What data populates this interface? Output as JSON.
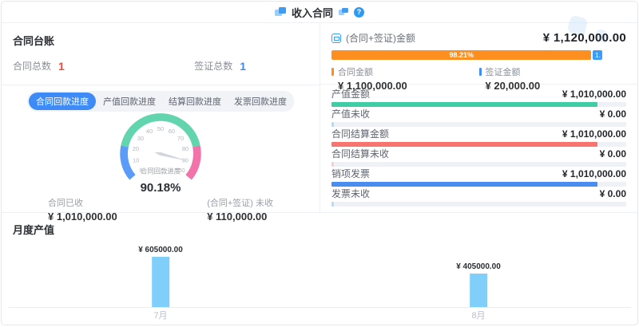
{
  "header": {
    "title": "收入合同",
    "help_glyph": "?",
    "icons": {
      "left": "documents-icon",
      "right": "copy-icon",
      "help": "help-icon"
    }
  },
  "ledger": {
    "title": "合同台账",
    "stats": [
      {
        "label": "合同总数",
        "value": "1",
        "color": "#f5483b"
      },
      {
        "label": "签证总数",
        "value": "1",
        "color": "#3d8af5"
      }
    ]
  },
  "amount_panel": {
    "label": "(合同+签证)金额",
    "total": "¥ 1,120,000.00",
    "stacked_bar": {
      "main_pct": 98.21,
      "main_label": "98.21%",
      "main_color": "#fd8f20",
      "rest_label": "1.",
      "rest_color": "#3d9df5"
    },
    "legend": [
      {
        "label": "合同金额",
        "value": "¥ 1,100,000.00",
        "color": "#fd8f20"
      },
      {
        "label": "签证金额",
        "value": "¥ 20,000.00",
        "color": "#3d8ff7"
      }
    ]
  },
  "progress_panel": {
    "tabs": [
      {
        "label": "合同回款进度",
        "active": true
      },
      {
        "label": "产值回款进度",
        "active": false
      },
      {
        "label": "结算回款进度",
        "active": false
      },
      {
        "label": "发票回款进度",
        "active": false
      }
    ],
    "percent": "90.18%",
    "stats": [
      {
        "label": "合同已收",
        "value": "¥ 1,010,000.00"
      },
      {
        "label": "(合同+签证) 未收",
        "value": "¥ 110,000.00"
      }
    ]
  },
  "metric_rows": [
    {
      "label": "产值金额",
      "value": "¥ 1,010,000.00",
      "pct": 90.18,
      "color": "#3fcda6"
    },
    {
      "label": "产值未收",
      "value": "¥ 0.00",
      "pct": 0.9,
      "color": "#aee0ea"
    },
    {
      "label": "合同结算金额",
      "value": "¥ 1,010,000.00",
      "pct": 90.18,
      "color": "#f8756f"
    },
    {
      "label": "合同结算未收",
      "value": "¥ 0.00",
      "pct": 0.9,
      "color": "#f8cdd3"
    },
    {
      "label": "销项发票",
      "value": "¥ 1,010,000.00",
      "pct": 90.18,
      "color": "#4a8df0"
    },
    {
      "label": "发票未收",
      "value": "¥ 0.00",
      "pct": 0.9,
      "color": "#bcd8f8"
    }
  ],
  "chart_data": [
    {
      "type": "gauge",
      "title": "合同回款进度",
      "value": 90.18,
      "value_label": "90.18%",
      "min": 0,
      "max": 100,
      "ticks": [
        0,
        10,
        20,
        30,
        40,
        50,
        60,
        70,
        80,
        90,
        100
      ],
      "segments": [
        {
          "to": 20,
          "color": "#5a9cf8"
        },
        {
          "to": 80,
          "color": "#63d5ae"
        },
        {
          "to": 100,
          "color": "#f173a9"
        }
      ],
      "needle_color": "#d2d6dc"
    },
    {
      "type": "bar",
      "title": "月度产值",
      "categories": [
        "7月",
        "8月"
      ],
      "values": [
        605000,
        405000
      ],
      "labels": [
        "¥ 605000.00",
        "¥ 405000.00"
      ],
      "bar_color": "#7fcffa",
      "xlabel": "",
      "ylabel": "",
      "ylim": [
        0,
        700000
      ],
      "grid": false,
      "legend_position": "none"
    }
  ]
}
